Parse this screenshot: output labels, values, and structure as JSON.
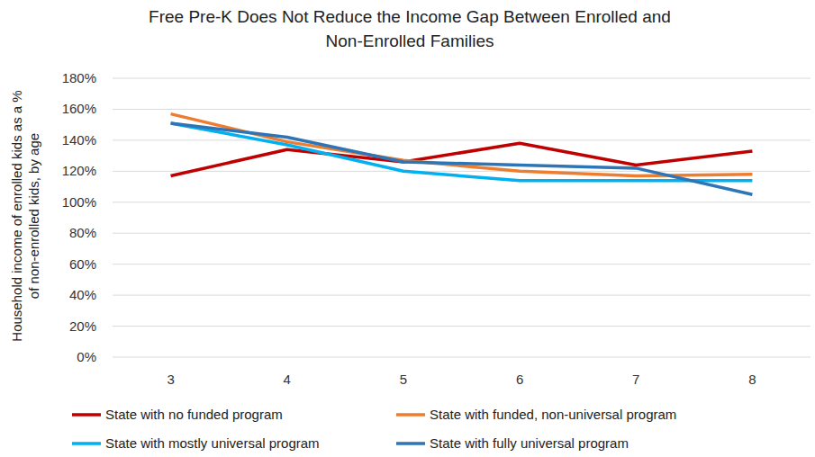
{
  "chart_data": {
    "type": "line",
    "title": "Free Pre-K Does Not Reduce the Income Gap Between Enrolled and Non-Enrolled Families",
    "y_label": "Household income of enrolled kids as a % of non-enrolled kids, by age",
    "categories": [
      "3",
      "4",
      "5",
      "6",
      "7",
      "8"
    ],
    "series": [
      {
        "name": "State with no funded program",
        "color": "#c00000",
        "values": [
          117,
          134,
          126,
          138,
          124,
          133
        ]
      },
      {
        "name": "State with funded, non-universal program",
        "color": "#ed7d31",
        "values": [
          157,
          139,
          127,
          120,
          117,
          118
        ]
      },
      {
        "name": "State with mostly universal program",
        "color": "#00b0f0",
        "values": [
          151,
          137,
          120,
          114,
          114,
          114
        ]
      },
      {
        "name": "State with fully universal program",
        "color": "#2e75b6",
        "values": [
          151,
          142,
          126,
          124,
          122,
          105
        ]
      }
    ],
    "ylim": [
      0,
      180
    ],
    "yticks": [
      {
        "value": 0,
        "label": "0%"
      },
      {
        "value": 20,
        "label": "20%"
      },
      {
        "value": 40,
        "label": "40%"
      },
      {
        "value": 60,
        "label": "60%"
      },
      {
        "value": 80,
        "label": "80%"
      },
      {
        "value": 100,
        "label": "100%"
      },
      {
        "value": 120,
        "label": "120%"
      },
      {
        "value": 140,
        "label": "140%"
      },
      {
        "value": 160,
        "label": "160%"
      },
      {
        "value": 180,
        "label": "180%"
      }
    ],
    "grid": true,
    "legend": "bottom"
  }
}
